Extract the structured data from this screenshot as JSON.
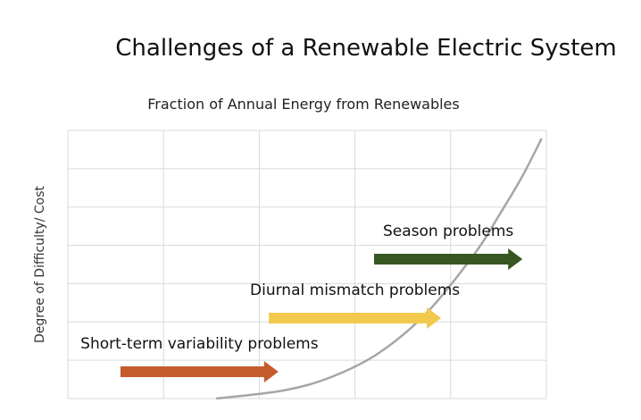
{
  "chart_data": {
    "type": "line",
    "title": "Challenges of a Renewable Electric System",
    "subtitle": "Fraction of Annual Energy from Renewables",
    "xlabel": "Fraction of Annual Energy from Renewables",
    "ylabel": "Degree of Difficulty/ Cost",
    "grid": true,
    "x_gridlines": 5,
    "y_gridlines": 7,
    "xlim": [
      0,
      1
    ],
    "ylim": [
      0,
      1
    ],
    "curve": {
      "name": "difficulty-curve",
      "color": "#a6a6a6",
      "x": [
        0.31,
        0.45,
        0.55,
        0.65,
        0.75,
        0.85,
        0.9,
        0.95,
        0.99
      ],
      "y": [
        0.0,
        0.03,
        0.08,
        0.17,
        0.32,
        0.54,
        0.68,
        0.83,
        0.97
      ]
    },
    "annotations": [
      {
        "label": "Short-term variability problems",
        "x_start": 0.11,
        "x_end": 0.44,
        "y": 0.1,
        "color": "#c55a2b"
      },
      {
        "label": "Diurnal mismatch problems",
        "x_start": 0.42,
        "x_end": 0.78,
        "y": 0.3,
        "color": "#f2c94c"
      },
      {
        "label": "Season problems",
        "x_start": 0.64,
        "x_end": 0.95,
        "y": 0.52,
        "color": "#375623"
      }
    ]
  }
}
